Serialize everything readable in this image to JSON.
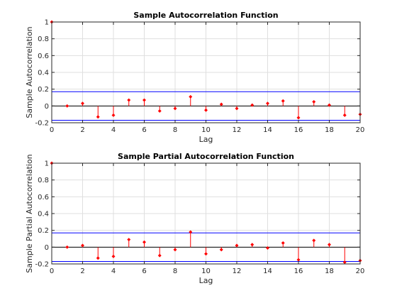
{
  "chart_data": [
    {
      "type": "stem",
      "title": "Sample Autocorrelation Function",
      "xlabel": "Lag",
      "ylabel": "Sample Autocorrelation",
      "xlim": [
        0,
        20
      ],
      "ylim": [
        -0.2,
        1
      ],
      "xticks": [
        "0",
        "2",
        "4",
        "6",
        "8",
        "10",
        "12",
        "14",
        "16",
        "18",
        "20"
      ],
      "yticks": [
        "-0.2",
        "0",
        "0.2",
        "0.4",
        "0.6",
        "0.8",
        "1"
      ],
      "grid": true,
      "lag": [
        0,
        1,
        2,
        3,
        4,
        5,
        6,
        7,
        8,
        9,
        10,
        11,
        12,
        13,
        14,
        15,
        16,
        17,
        18,
        19,
        20
      ],
      "values": [
        1.0,
        0.0,
        0.03,
        -0.13,
        -0.11,
        0.07,
        0.07,
        -0.06,
        -0.03,
        0.11,
        -0.05,
        0.02,
        -0.03,
        0.01,
        0.03,
        0.06,
        -0.14,
        0.05,
        0.01,
        -0.11,
        -0.1
      ],
      "confidence_bound": 0.17,
      "colors": {
        "stem": "#ff0000",
        "bounds": "#0000ff",
        "zero": "#000000"
      }
    },
    {
      "type": "stem",
      "title": "Sample Partial Autocorrelation Function",
      "xlabel": "Lag",
      "ylabel": "Sample Partial Autocorrelation",
      "xlim": [
        0,
        20
      ],
      "ylim": [
        -0.2,
        1
      ],
      "xticks": [
        "0",
        "2",
        "4",
        "6",
        "8",
        "10",
        "12",
        "14",
        "16",
        "18",
        "20"
      ],
      "yticks": [
        "-0.2",
        "0",
        "0.2",
        "0.4",
        "0.6",
        "0.8",
        "1"
      ],
      "grid": true,
      "lag": [
        0,
        1,
        2,
        3,
        4,
        5,
        6,
        7,
        8,
        9,
        10,
        11,
        12,
        13,
        14,
        15,
        16,
        17,
        18,
        19,
        20
      ],
      "values": [
        1.0,
        0.0,
        0.02,
        -0.13,
        -0.11,
        0.09,
        0.06,
        -0.1,
        -0.03,
        0.18,
        -0.08,
        -0.03,
        0.02,
        0.03,
        -0.01,
        0.05,
        -0.15,
        0.08,
        0.03,
        -0.18,
        -0.16
      ],
      "confidence_bound": 0.17,
      "colors": {
        "stem": "#ff0000",
        "bounds": "#0000ff",
        "zero": "#000000"
      }
    }
  ]
}
